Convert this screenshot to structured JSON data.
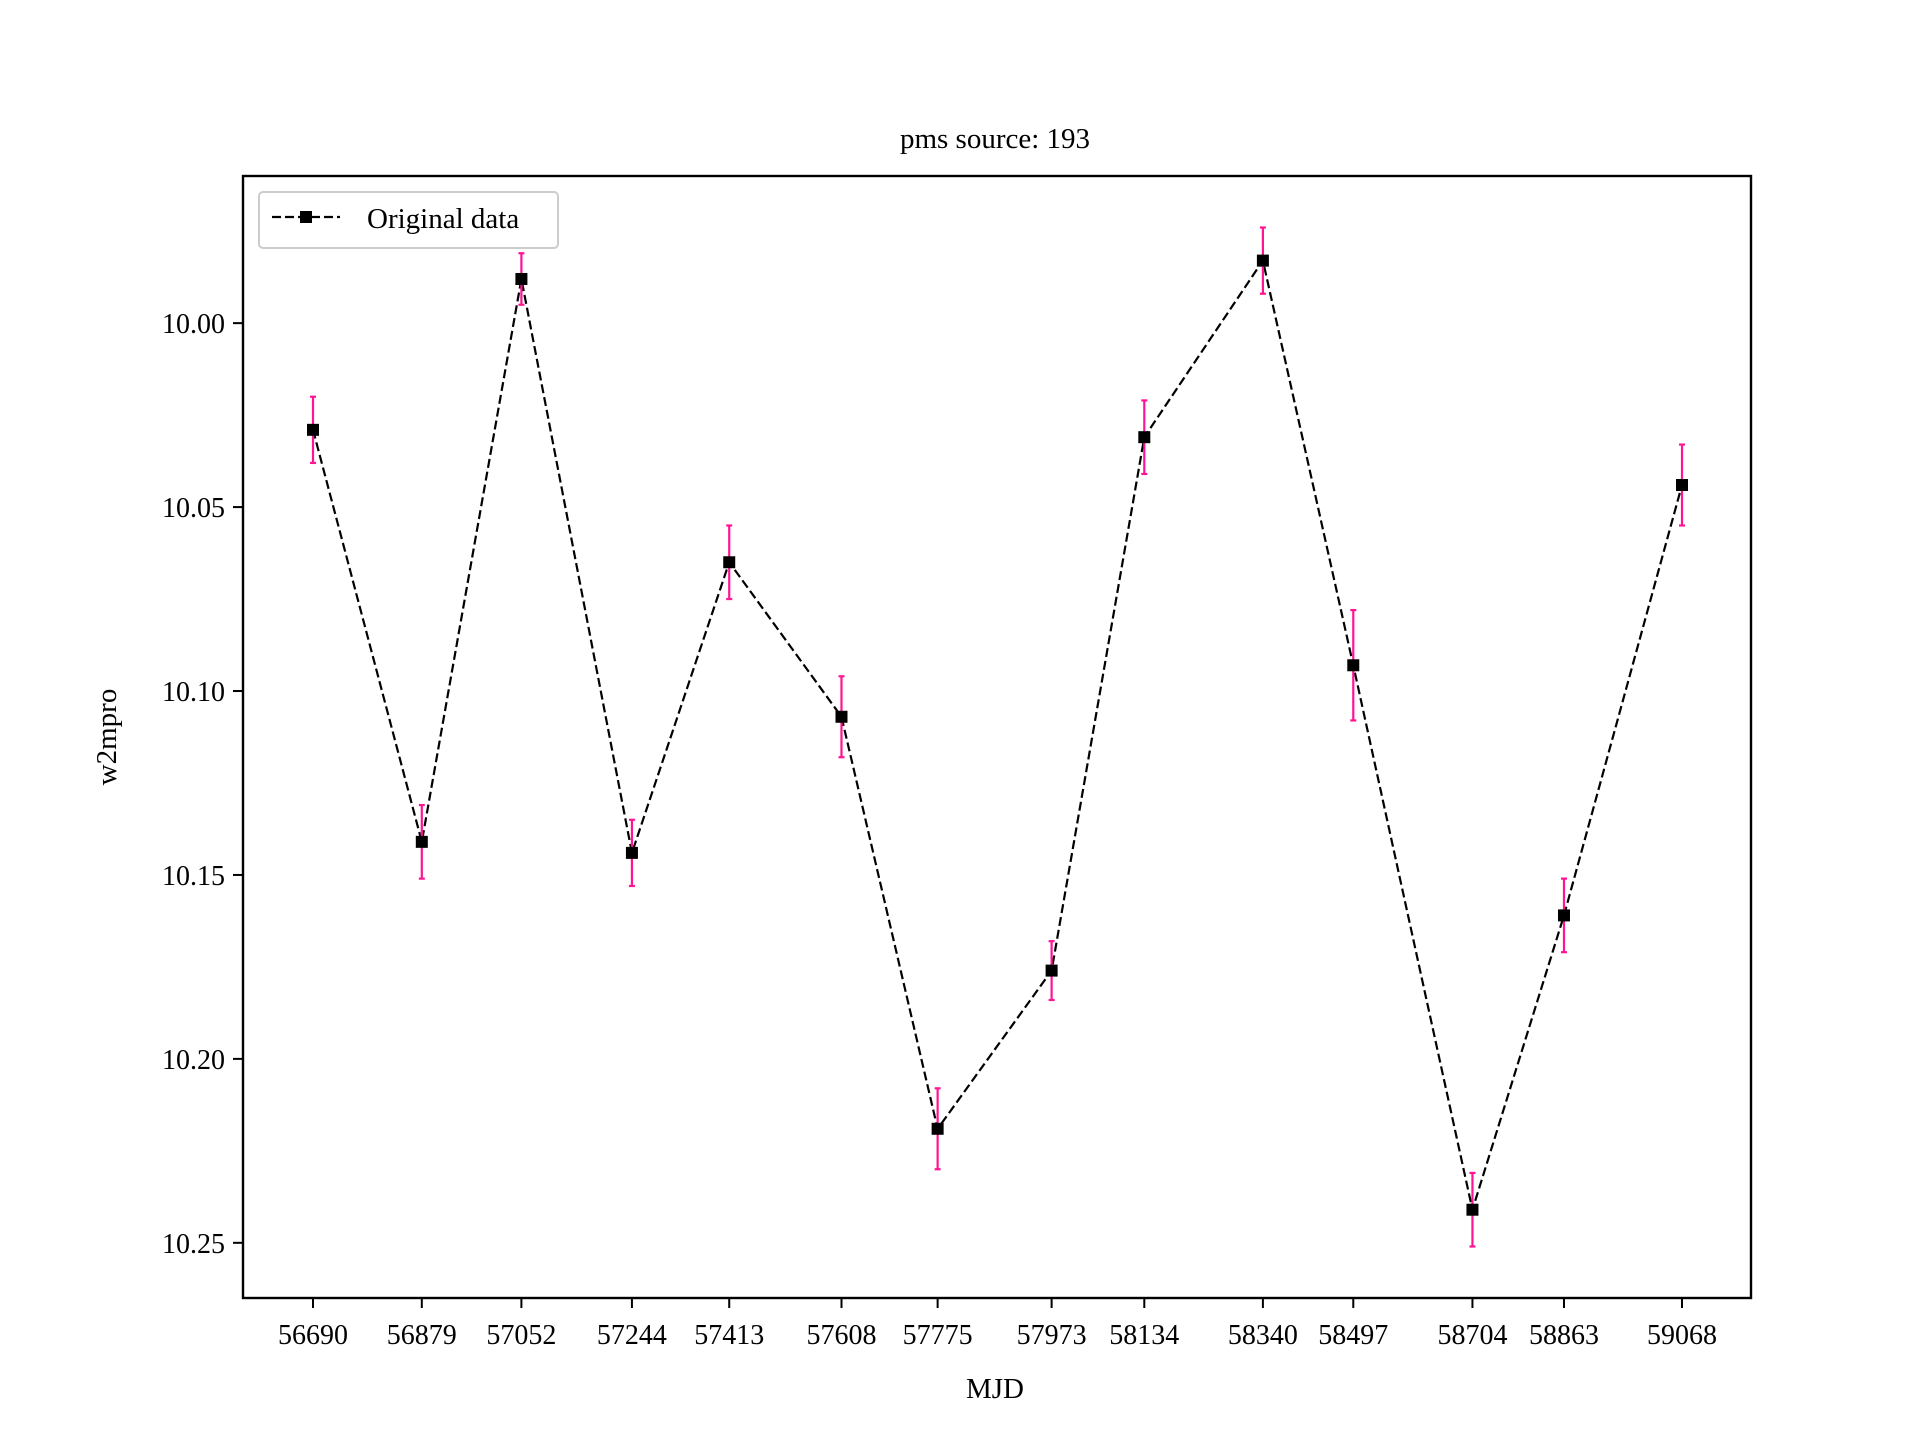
{
  "chart_data": {
    "type": "line",
    "title": "pms source: 193",
    "xlabel": "MJD",
    "ylabel": "w2mpro",
    "y_inverted": true,
    "ylim": [
      10.265,
      9.96
    ],
    "y_ticks": [
      10.0,
      10.05,
      10.1,
      10.15,
      10.2,
      10.25
    ],
    "x": [
      56690,
      56879,
      57052,
      57244,
      57413,
      57608,
      57775,
      57973,
      58134,
      58340,
      58497,
      58704,
      58863,
      59068
    ],
    "x_tick_labels": [
      "56690",
      "56879",
      "57052",
      "57244",
      "57413",
      "57608",
      "57775",
      "57973",
      "58134",
      "58340",
      "58497",
      "58704",
      "58863",
      "59068"
    ],
    "series": [
      {
        "name": "Original data",
        "values": [
          10.029,
          10.141,
          9.988,
          10.144,
          10.065,
          10.107,
          10.219,
          10.176,
          10.031,
          9.983,
          10.093,
          10.241,
          10.161,
          10.044
        ],
        "errors": [
          0.009,
          0.01,
          0.007,
          0.009,
          0.01,
          0.011,
          0.011,
          0.008,
          0.01,
          0.009,
          0.015,
          0.01,
          0.01,
          0.011
        ],
        "line_color": "#000000",
        "line_style": "dashed",
        "marker": "square",
        "error_color": "#ff1493"
      }
    ],
    "legend_position": "top-left",
    "grid": false
  }
}
